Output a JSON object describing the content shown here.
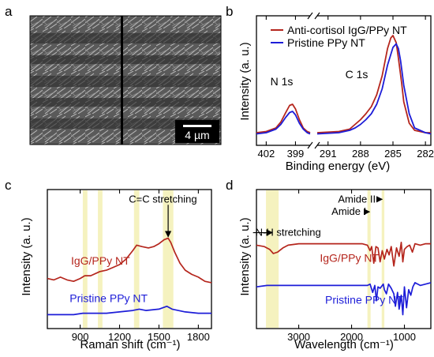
{
  "figure": {
    "panels": {
      "a": {
        "letter": "a",
        "scale_bar": "4 µm",
        "image_desc": "SEM micrograph of PPy nanotube film"
      },
      "b": {
        "letter": "b"
      },
      "c": {
        "letter": "c"
      },
      "d": {
        "letter": "d"
      }
    }
  },
  "colors": {
    "red": "#b5261d",
    "blue": "#1d1dd8",
    "highlight": "#f3f0b4"
  },
  "chart_data": [
    {
      "id": "b",
      "type": "line",
      "xlabel": "Binding energy (eV)",
      "ylabel": "Intensity (a. u.)",
      "x_reversed": true,
      "axis_break": true,
      "segments": [
        {
          "xlim": [
            403,
            397.5
          ]
        },
        {
          "xlim": [
            292,
            281.5
          ]
        }
      ],
      "xticks": [
        {
          "v": 402,
          "s": 0,
          "label": "402"
        },
        {
          "v": 399,
          "s": 0,
          "label": "399"
        },
        {
          "v": 291,
          "s": 1,
          "label": "291"
        },
        {
          "v": 288,
          "s": 1,
          "label": "288"
        },
        {
          "v": 285,
          "s": 1,
          "label": "285"
        },
        {
          "v": 282,
          "s": 1,
          "label": "282"
        }
      ],
      "ylim": [
        0,
        1
      ],
      "annotations": [
        {
          "text": "N 1s",
          "x": 399.5,
          "y": 0.43
        },
        {
          "text": "C 1s",
          "x": 288.5,
          "y": 0.55
        }
      ],
      "legend": [
        "Anti-cortisol IgG/PPy NT",
        "Pristine PPy NT"
      ],
      "series": [
        {
          "name": "Anti-cortisol IgG/PPy NT",
          "color": "#b5261d",
          "x": [
            403,
            402,
            401,
            400.5,
            400,
            399.6,
            399.3,
            399,
            398.6,
            398.2,
            397.8,
            397.5,
            292,
            290,
            289,
            288.5,
            288,
            287.5,
            287,
            286.5,
            286,
            285.5,
            285.2,
            285,
            284.7,
            284.5,
            284.2,
            284,
            283.5,
            283,
            282,
            281.5
          ],
          "y": [
            0.08,
            0.09,
            0.12,
            0.17,
            0.25,
            0.31,
            0.32,
            0.28,
            0.19,
            0.12,
            0.09,
            0.08,
            0.08,
            0.09,
            0.11,
            0.15,
            0.19,
            0.24,
            0.3,
            0.4,
            0.56,
            0.79,
            0.88,
            0.9,
            0.84,
            0.71,
            0.5,
            0.34,
            0.16,
            0.1,
            0.08,
            0.08
          ]
        },
        {
          "name": "Pristine PPy NT",
          "color": "#1d1dd8",
          "x": [
            403,
            402,
            401,
            400.5,
            400,
            399.6,
            399.3,
            399,
            398.6,
            398.2,
            397.8,
            397.5,
            292,
            290,
            289,
            288.5,
            288,
            287.5,
            287,
            286.5,
            286,
            285.5,
            285,
            284.7,
            284.5,
            284.3,
            284,
            283.5,
            283,
            282,
            281.5
          ],
          "y": [
            0.07,
            0.08,
            0.11,
            0.15,
            0.21,
            0.25,
            0.26,
            0.23,
            0.16,
            0.11,
            0.08,
            0.07,
            0.07,
            0.08,
            0.1,
            0.12,
            0.15,
            0.19,
            0.24,
            0.32,
            0.45,
            0.65,
            0.8,
            0.83,
            0.79,
            0.69,
            0.48,
            0.24,
            0.12,
            0.08,
            0.07
          ]
        }
      ]
    },
    {
      "id": "c",
      "type": "line",
      "xlabel": "Raman shift (cm⁻¹)",
      "ylabel": "Intensity (a. u.)",
      "xlim": [
        650,
        1900
      ],
      "xticks": [
        900,
        1200,
        1500,
        1800
      ],
      "ylim": [
        0,
        1
      ],
      "highlights": [
        [
          920,
          955
        ],
        [
          1035,
          1070
        ],
        [
          1310,
          1350
        ],
        [
          1530,
          1610
        ]
      ],
      "annotations": [
        {
          "text": "C=C stretching",
          "x": 1530,
          "y": 0.93,
          "arrow_to": [
            1570,
            0.66
          ]
        }
      ],
      "series": [
        {
          "name": "IgG/PPy NT",
          "color": "#b5261d",
          "label_at": [
            830,
            0.46
          ],
          "x": [
            650,
            700,
            750,
            800,
            850,
            900,
            935,
            980,
            1050,
            1100,
            1150,
            1200,
            1250,
            1300,
            1330,
            1370,
            1420,
            1460,
            1500,
            1540,
            1570,
            1590,
            1620,
            1660,
            1700,
            1750,
            1800,
            1850,
            1900
          ],
          "y": [
            0.36,
            0.35,
            0.37,
            0.35,
            0.34,
            0.36,
            0.38,
            0.38,
            0.41,
            0.42,
            0.44,
            0.46,
            0.5,
            0.56,
            0.6,
            0.59,
            0.58,
            0.59,
            0.61,
            0.64,
            0.65,
            0.62,
            0.55,
            0.47,
            0.42,
            0.39,
            0.37,
            0.34,
            0.33
          ]
        },
        {
          "name": "Pristine PPy NT",
          "color": "#1d1dd8",
          "label_at": [
            820,
            0.19
          ],
          "x": [
            650,
            750,
            850,
            920,
            1000,
            1100,
            1200,
            1300,
            1350,
            1400,
            1500,
            1560,
            1600,
            1700,
            1800,
            1900
          ],
          "y": [
            0.1,
            0.1,
            0.1,
            0.11,
            0.11,
            0.11,
            0.12,
            0.13,
            0.14,
            0.13,
            0.14,
            0.16,
            0.14,
            0.12,
            0.11,
            0.11
          ]
        }
      ]
    },
    {
      "id": "d",
      "type": "line",
      "xlabel": "Wavelength (cm⁻¹)",
      "ylabel": "Intensity (a. u.)",
      "xlim": [
        3800,
        500
      ],
      "x_reversed": true,
      "xticks": [
        3000,
        2000,
        1000
      ],
      "ylim": [
        0,
        1
      ],
      "highlights": [
        [
          3620,
          3380
        ],
        [
          1700,
          1640
        ],
        [
          1430,
          1380
        ]
      ],
      "annotations": [
        {
          "text": "Amide II",
          "x": 1900,
          "y": 0.93,
          "arrow_to": [
            1420,
            0.93
          ]
        },
        {
          "text": "Amide I",
          "x": 2050,
          "y": 0.84,
          "arrow_to": [
            1660,
            0.84
          ]
        },
        {
          "text": "N-H stretching",
          "x": 3200,
          "y": 0.69,
          "arrow_to": [
            3500,
            0.69
          ]
        }
      ],
      "series": [
        {
          "name": "IgG/PPy NT",
          "color": "#b5261d",
          "label_at": [
            2600,
            0.48
          ],
          "x": [
            3800,
            3650,
            3550,
            3480,
            3400,
            3300,
            3200,
            3000,
            2600,
            2200,
            1800,
            1700,
            1650,
            1620,
            1580,
            1540,
            1500,
            1460,
            1420,
            1380,
            1330,
            1290,
            1250,
            1200,
            1150,
            1100,
            1060,
            1030,
            1000,
            950,
            900,
            850,
            800,
            700,
            600,
            500
          ],
          "y": [
            0.6,
            0.59,
            0.57,
            0.54,
            0.55,
            0.58,
            0.6,
            0.61,
            0.61,
            0.61,
            0.61,
            0.6,
            0.56,
            0.59,
            0.47,
            0.59,
            0.58,
            0.48,
            0.56,
            0.5,
            0.57,
            0.53,
            0.59,
            0.45,
            0.58,
            0.52,
            0.62,
            0.48,
            0.57,
            0.59,
            0.6,
            0.55,
            0.61,
            0.6,
            0.61,
            0.61
          ]
        },
        {
          "name": "Pristine PPy NT",
          "color": "#1d1dd8",
          "label_at": [
            2500,
            0.18
          ],
          "x": [
            3800,
            3600,
            3400,
            3000,
            2600,
            2200,
            1800,
            1700,
            1650,
            1600,
            1560,
            1530,
            1500,
            1460,
            1400,
            1380,
            1340,
            1300,
            1250,
            1200,
            1170,
            1130,
            1100,
            1060,
            1030,
            1000,
            960,
            920,
            880,
            840,
            800,
            700,
            600,
            500
          ],
          "y": [
            0.3,
            0.31,
            0.31,
            0.31,
            0.31,
            0.31,
            0.31,
            0.31,
            0.32,
            0.26,
            0.31,
            0.2,
            0.3,
            0.29,
            0.32,
            0.28,
            0.25,
            0.32,
            0.29,
            0.25,
            0.16,
            0.26,
            0.14,
            0.24,
            0.1,
            0.3,
            0.15,
            0.28,
            0.24,
            0.3,
            0.33,
            0.31,
            0.32,
            0.33
          ]
        }
      ]
    }
  ]
}
